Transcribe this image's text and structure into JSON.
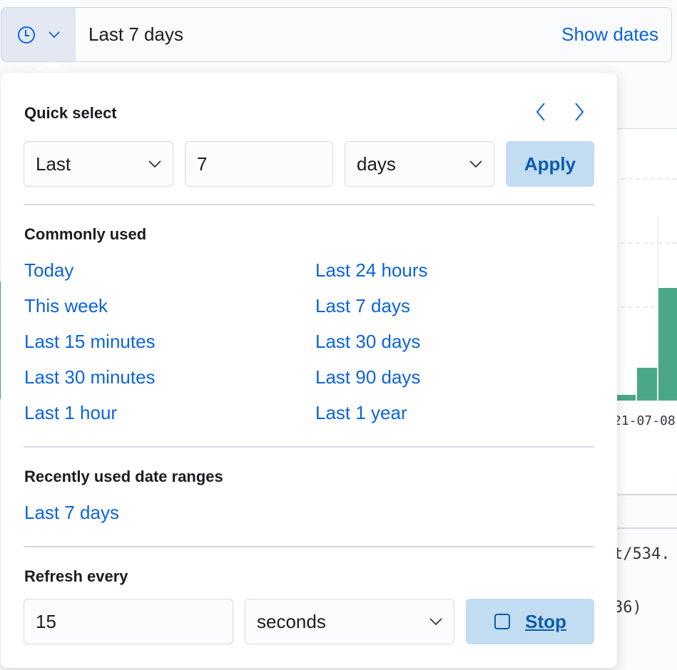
{
  "picker": {
    "range_text": "Last 7 days",
    "show_dates": "Show dates"
  },
  "quick_select": {
    "title": "Quick select",
    "direction": "Last",
    "value": "7",
    "unit": "days",
    "apply": "Apply"
  },
  "commonly_used": {
    "title": "Commonly used",
    "left": [
      "Today",
      "This week",
      "Last 15 minutes",
      "Last 30 minutes",
      "Last 1 hour"
    ],
    "right": [
      "Last 24 hours",
      "Last 7 days",
      "Last 30 days",
      "Last 90 days",
      "Last 1 year"
    ]
  },
  "recent": {
    "title": "Recently used date ranges",
    "items": [
      "Last 7 days"
    ]
  },
  "refresh": {
    "title": "Refresh every",
    "value": "15",
    "unit": "seconds",
    "stop": "Stop"
  },
  "background": {
    "axis_label": "21-07-08",
    "code_lines": [
      "t/534.",
      "36)"
    ]
  },
  "colors": {
    "accent": "#0b64dd",
    "bar": "#4aa886",
    "button": "#c2dcf2"
  }
}
